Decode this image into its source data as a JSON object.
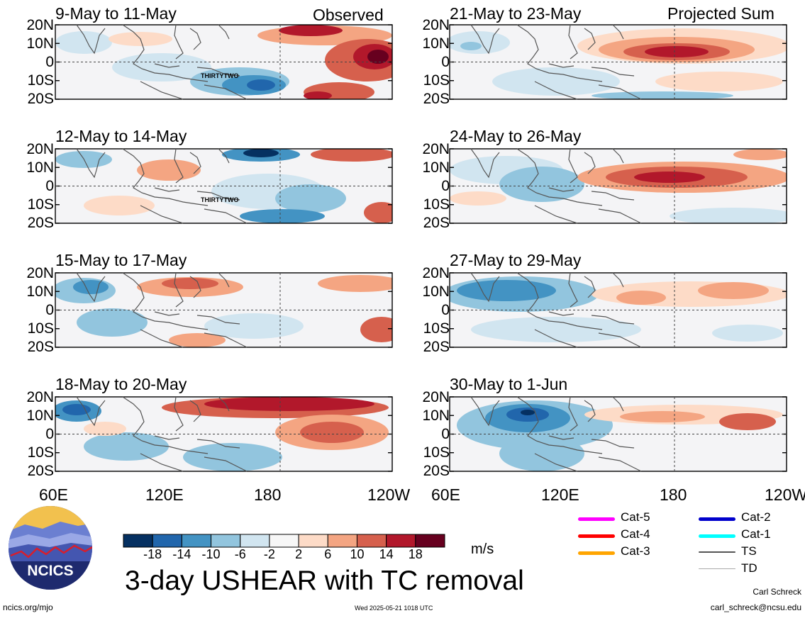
{
  "panels": {
    "left": [
      {
        "title": "9-May to 11-May",
        "tag": "Observed",
        "storm_label": "THIRTYTWO"
      },
      {
        "title": "12-May to 14-May",
        "tag": "",
        "storm_label": "THIRTYTWO"
      },
      {
        "title": "15-May to 17-May",
        "tag": "",
        "storm_label": ""
      },
      {
        "title": "18-May to 20-May",
        "tag": "",
        "storm_label": ""
      }
    ],
    "right": [
      {
        "title": "21-May to 23-May",
        "tag": "Projected Sum"
      },
      {
        "title": "24-May to 26-May",
        "tag": ""
      },
      {
        "title": "27-May to 29-May",
        "tag": ""
      },
      {
        "title": "30-May to 1-Jun",
        "tag": ""
      }
    ]
  },
  "axes": {
    "lat_labels": [
      "20N",
      "10N",
      "0",
      "10S",
      "20S"
    ],
    "lon_labels_left": [
      "60E",
      "120E",
      "180",
      "120W"
    ],
    "lon_labels_right": [
      "60E",
      "120E",
      "180",
      "120W"
    ]
  },
  "colorbar": {
    "tick_labels": [
      "-18",
      "-14",
      "-10",
      "-6",
      "-2",
      "2",
      "6",
      "10",
      "14",
      "18"
    ],
    "colors": [
      "#053061",
      "#2166ac",
      "#4393c3",
      "#92c5de",
      "#d1e5f0",
      "#f7f7f7",
      "#fddbc7",
      "#f4a582",
      "#d6604d",
      "#b2182b",
      "#67001f"
    ],
    "units": "m/s"
  },
  "legend": {
    "items": [
      {
        "label": "Cat-5",
        "color": "#ff00ff"
      },
      {
        "label": "Cat-4",
        "color": "#ff0000"
      },
      {
        "label": "Cat-3",
        "color": "#ffa500"
      },
      {
        "label": "Cat-2",
        "color": "#0000cc"
      },
      {
        "label": "Cat-1",
        "color": "#00ffff"
      },
      {
        "label": "TS",
        "color": "#555555"
      },
      {
        "label": "TD",
        "color": "#aaaaaa"
      }
    ]
  },
  "logo": {
    "text": "NCICS"
  },
  "main_title": "3-day USHEAR with TC removal",
  "footer": {
    "left_url": "ncics.org/mjo",
    "timestamp": "Wed 2025-05-21 1018 UTC",
    "author": "Carl Schreck",
    "email": "carl_schreck@ncsu.edu"
  }
}
